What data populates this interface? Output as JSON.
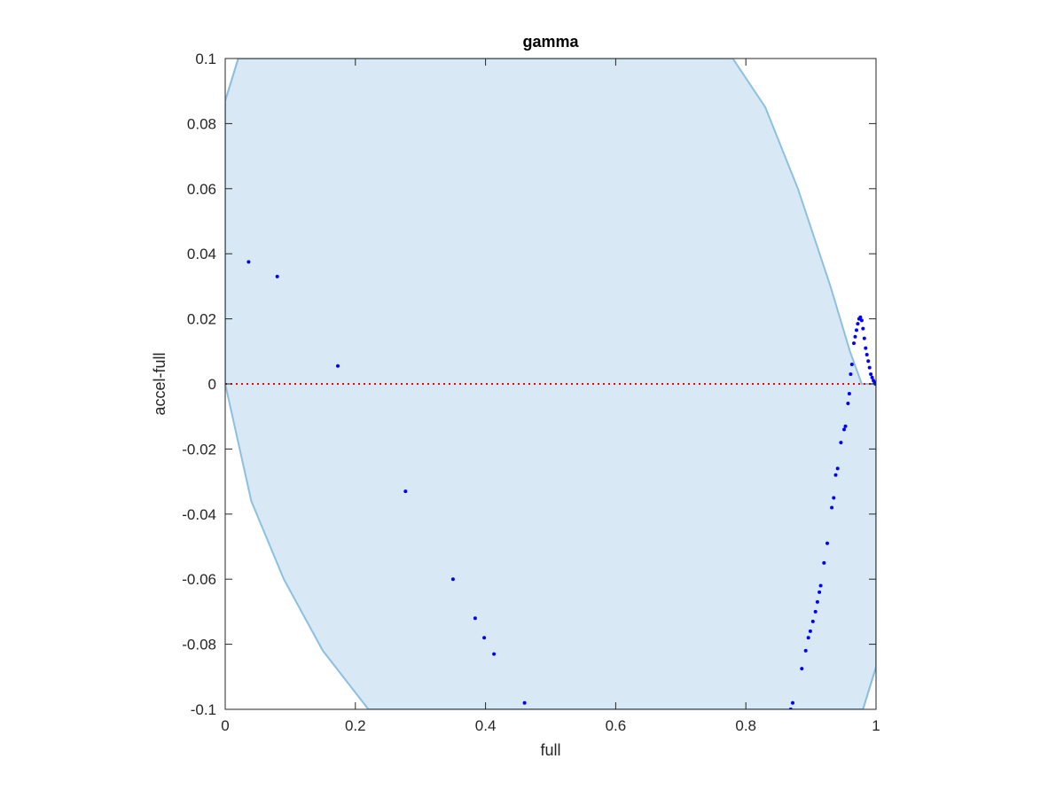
{
  "chart_data": {
    "type": "scatter",
    "title": "gamma",
    "xlabel": "full",
    "ylabel": "accel-full",
    "xlim": [
      0,
      1
    ],
    "ylim": [
      -0.1,
      0.1
    ],
    "x_ticks": [
      "0",
      "0.2",
      "0.4",
      "0.6",
      "0.8",
      "1"
    ],
    "y_ticks": [
      "-0.1",
      "-0.08",
      "-0.06",
      "-0.04",
      "-0.02",
      "0",
      "0.02",
      "0.04",
      "0.06",
      "0.08",
      "0.1"
    ],
    "x_tick_values": [
      0,
      0.2,
      0.4,
      0.6,
      0.8,
      1
    ],
    "y_tick_values": [
      -0.1,
      -0.08,
      -0.06,
      -0.04,
      -0.02,
      0,
      0.02,
      0.04,
      0.06,
      0.08,
      0.1
    ],
    "grid": false,
    "colors": {
      "points": "#0000ff",
      "zero_line": "#ff0000",
      "region_fill": "#d8e8f4",
      "region_edge": "#8cc0e0",
      "axes": "#262626"
    },
    "shaded_region": {
      "description_values": "stability region boundary",
      "boundary": [
        [
          0.0,
          0.087
        ],
        [
          0.02,
          0.1
        ],
        [
          0.78,
          0.1
        ],
        [
          0.83,
          0.085
        ],
        [
          0.88,
          0.06
        ],
        [
          0.93,
          0.03
        ],
        [
          0.96,
          0.01
        ],
        [
          0.978,
          0.0
        ],
        [
          0.99,
          0.0
        ],
        [
          1.0,
          0.0
        ],
        [
          1.0,
          -0.087
        ],
        [
          0.98,
          -0.1
        ],
        [
          0.22,
          -0.1
        ],
        [
          0.15,
          -0.082
        ],
        [
          0.09,
          -0.06
        ],
        [
          0.04,
          -0.036
        ],
        [
          0.0,
          0.0
        ]
      ],
      "outer_arcs": [
        [
          [
            0.0,
            0.087
          ],
          [
            0.02,
            0.1
          ]
        ],
        [
          [
            1.0,
            -0.087
          ],
          [
            0.98,
            -0.1
          ]
        ]
      ]
    },
    "reference_line": {
      "y": 0,
      "style": "dotted"
    },
    "series": [
      {
        "x": [
          0.036,
          0.08,
          0.173,
          0.277,
          0.35,
          0.384,
          0.398,
          0.413,
          0.46,
          0.869,
          0.872,
          0.886,
          0.892,
          0.896,
          0.899,
          0.903,
          0.907,
          0.91,
          0.913,
          0.915,
          0.92,
          0.925,
          0.932,
          0.935,
          0.938,
          0.941,
          0.946,
          0.951,
          0.953,
          0.957,
          0.959,
          0.961,
          0.963,
          0.966,
          0.968,
          0.97,
          0.972,
          0.974,
          0.976,
          0.978,
          0.98,
          0.982,
          0.984,
          0.986,
          0.988,
          0.99,
          0.992,
          0.994,
          0.996,
          0.998,
          0.999
        ],
        "y": [
          0.0375,
          0.033,
          0.0055,
          -0.033,
          -0.06,
          -0.072,
          -0.078,
          -0.083,
          -0.098,
          -0.1,
          -0.098,
          -0.0875,
          -0.082,
          -0.078,
          -0.076,
          -0.073,
          -0.07,
          -0.067,
          -0.064,
          -0.062,
          -0.055,
          -0.049,
          -0.038,
          -0.035,
          -0.028,
          -0.026,
          -0.018,
          -0.014,
          -0.013,
          -0.006,
          -0.003,
          0.003,
          0.006,
          0.0125,
          0.0145,
          0.0165,
          0.0185,
          0.02,
          0.0205,
          0.0195,
          0.017,
          0.014,
          0.011,
          0.009,
          0.007,
          0.005,
          0.003,
          0.002,
          0.001,
          0.0005,
          0.0
        ]
      }
    ]
  }
}
